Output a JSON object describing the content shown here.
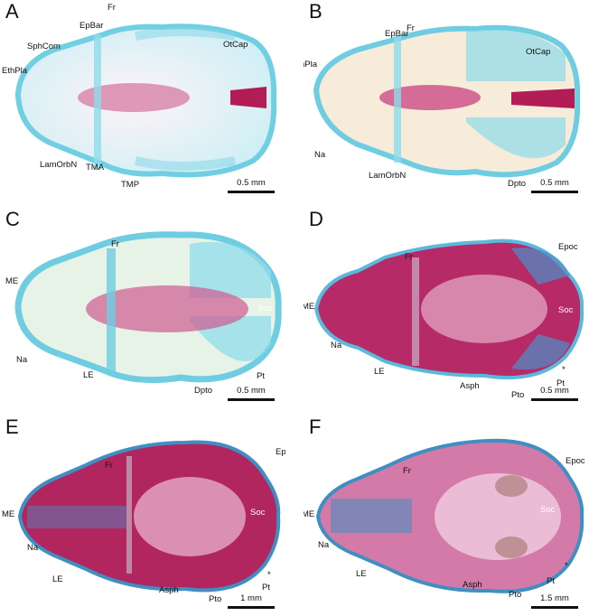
{
  "panels": [
    {
      "letter": "A",
      "scale": "0.5 mm",
      "labels": {
        "SphCom": "SphCom",
        "EpBar": "EpBar",
        "Fr": "Fr",
        "OtCap": "OtCap",
        "EthPla": "EthPla",
        "LamOrbN": "LamOrbN",
        "TMA": "TMA",
        "TMP": "TMP"
      }
    },
    {
      "letter": "B",
      "scale": "0.5 mm",
      "labels": {
        "EpBar": "EpBar",
        "Fr": "Fr",
        "OtCap": "OtCap",
        "EthPla": "EthPla",
        "Na": "Na",
        "LamOrbN": "LamOrbN",
        "Dpto": "Dpto"
      }
    },
    {
      "letter": "C",
      "scale": "0.5 mm",
      "labels": {
        "Fr": "Fr",
        "ME": "ME",
        "Soc": "Soc",
        "Na": "Na",
        "LE": "LE",
        "Dpto": "Dpto",
        "Pt": "Pt"
      }
    },
    {
      "letter": "D",
      "scale": "0.5 mm",
      "labels": {
        "Fr": "Fr",
        "Epoc": "Epoc",
        "ME": "ME",
        "Soc": "Soc",
        "Na": "Na",
        "LE": "LE",
        "star": "*",
        "Asph": "Asph",
        "Pto": "Pto",
        "Pt": "Pt"
      }
    },
    {
      "letter": "E",
      "scale": "1 mm",
      "labels": {
        "Fr": "Fr",
        "Epoc": "Epoc",
        "ME": "ME",
        "Soc": "Soc",
        "Na": "Na",
        "LE": "LE",
        "star": "*",
        "Asph": "Asph",
        "Pto": "Pto",
        "Pt": "Pt"
      }
    },
    {
      "letter": "F",
      "scale": "1.5 mm",
      "labels": {
        "Fr": "Fr",
        "Epoc": "Epoc",
        "ME": "ME",
        "Soc": "Soc",
        "Na": "Na",
        "LE": "LE",
        "star": "*",
        "Asph": "Asph",
        "Pto": "Pto",
        "Pt": "Pt"
      }
    }
  ],
  "colors": {
    "cartilage": "#7fd3e6",
    "bone": "#b0245e",
    "boneLight": "#d98ab0"
  }
}
